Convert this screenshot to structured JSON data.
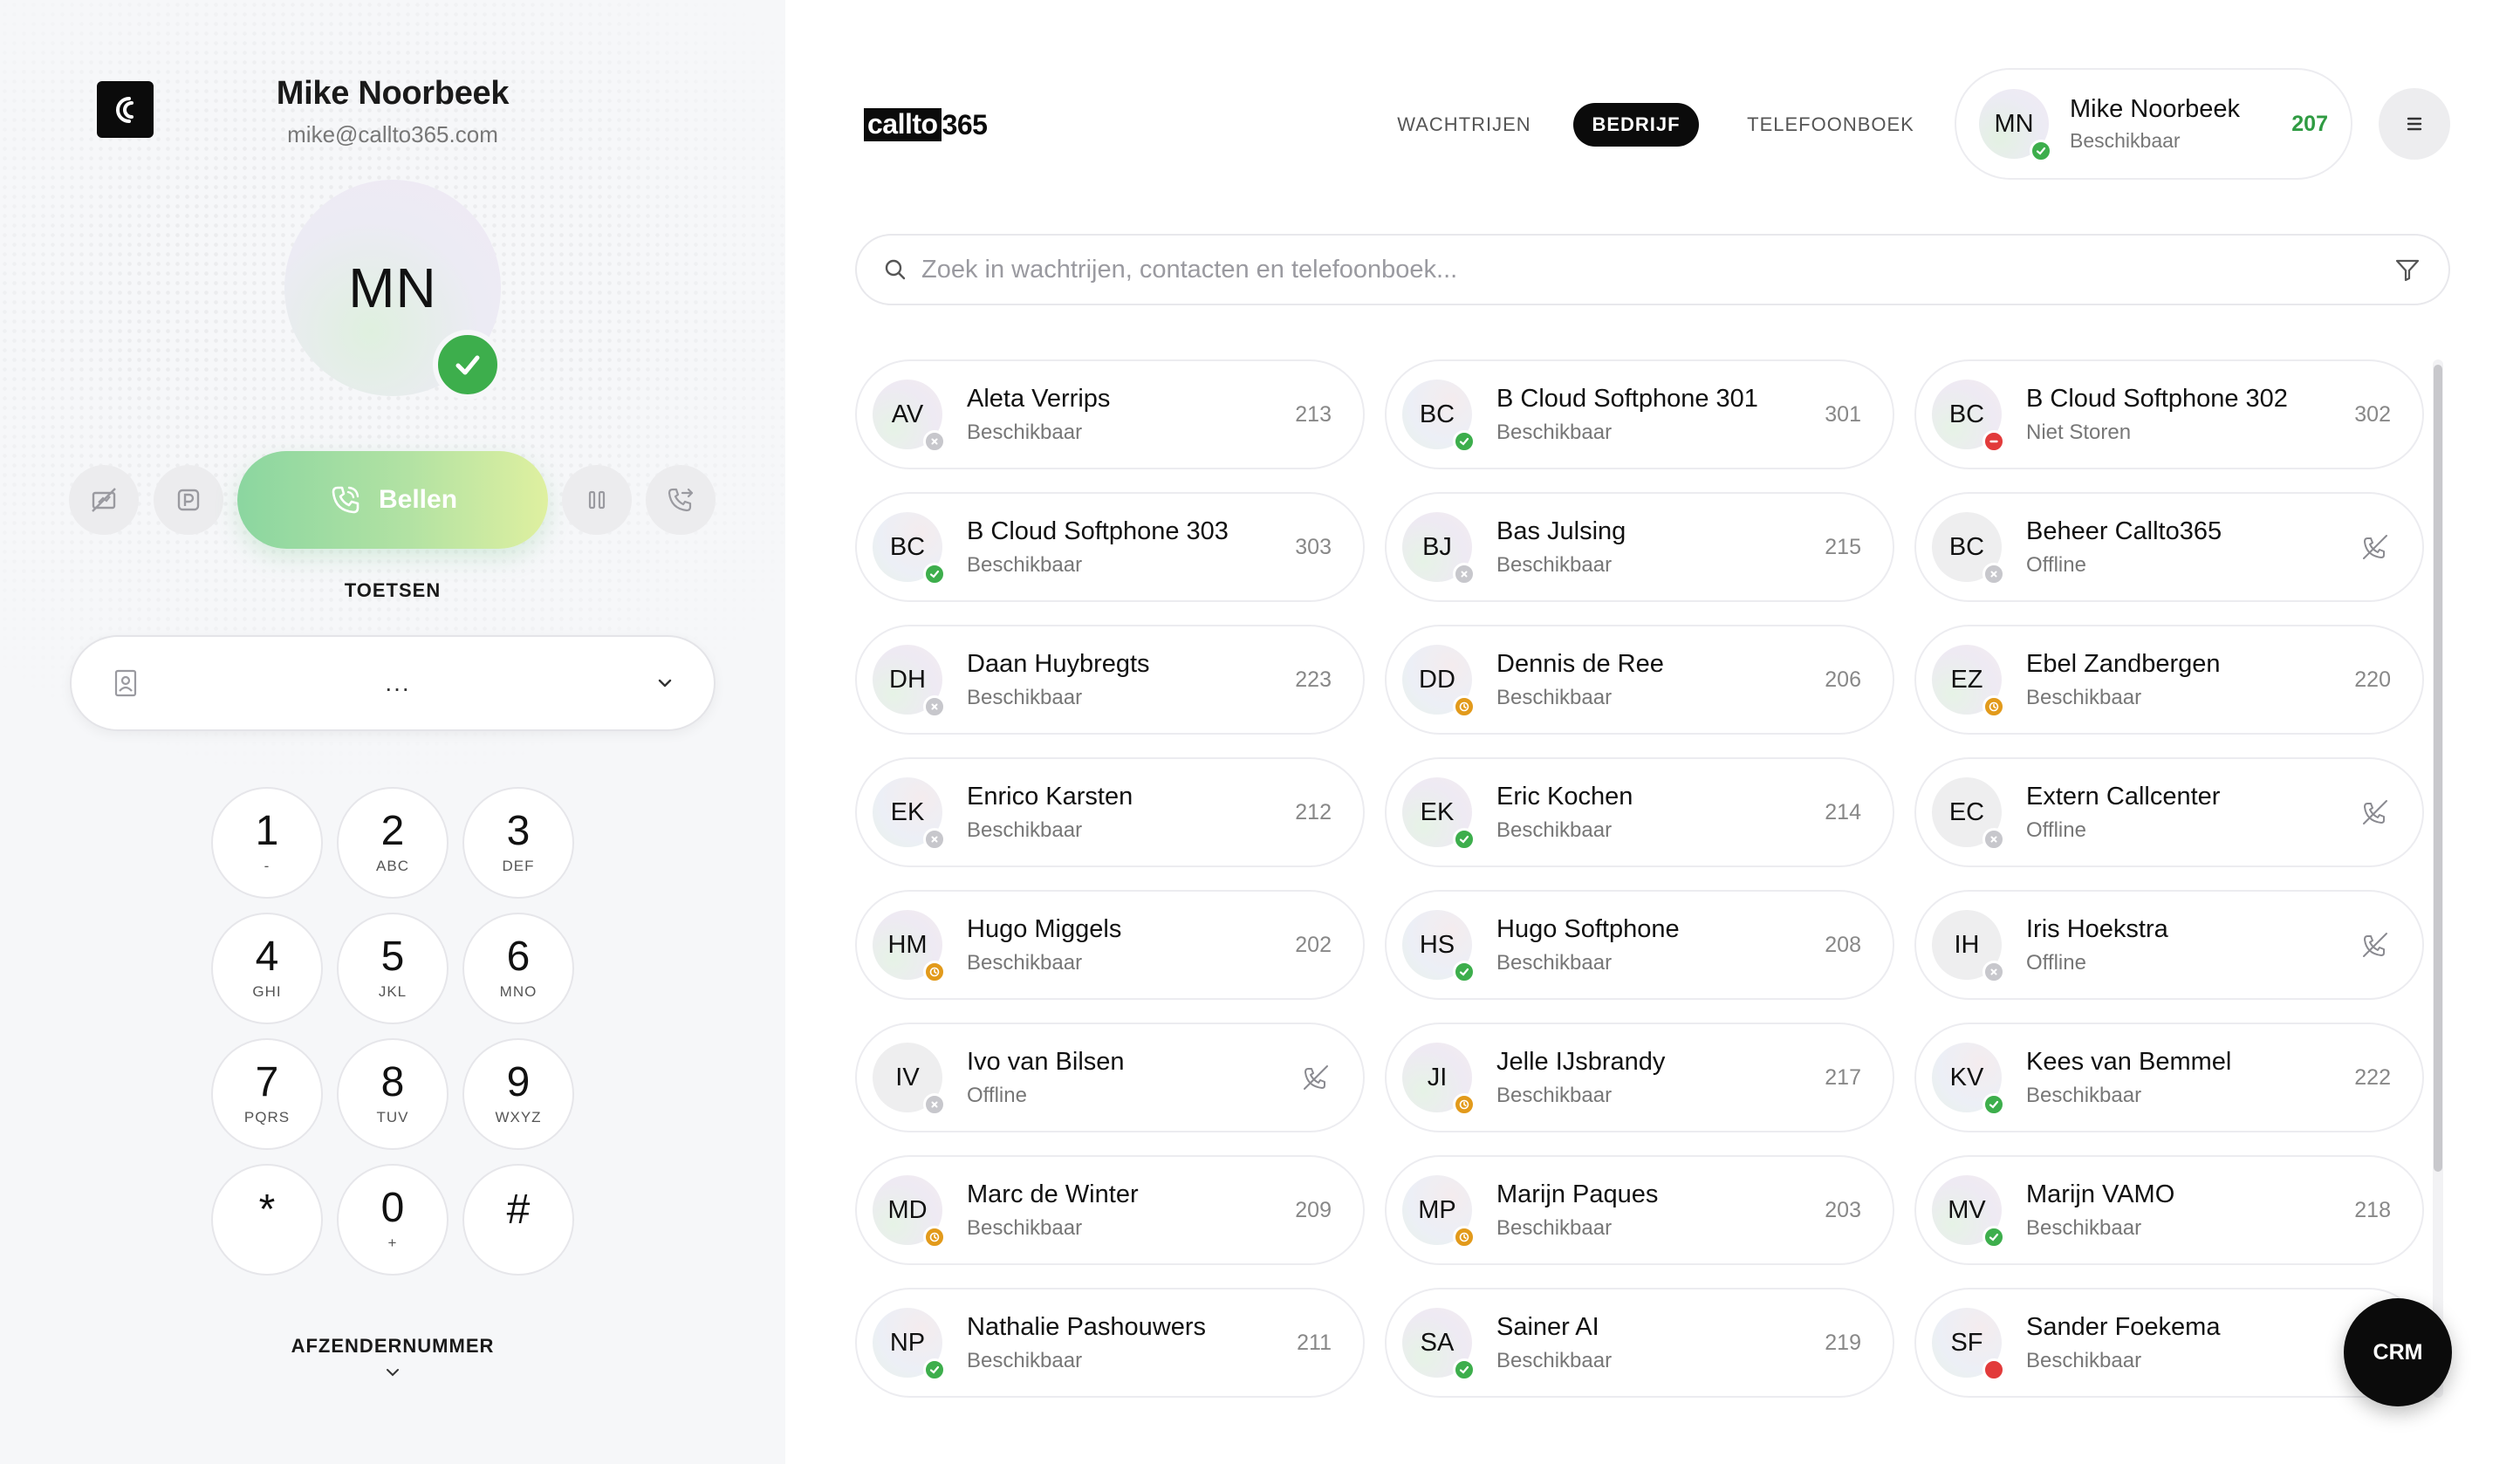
{
  "user": {
    "name": "Mike Noorbeek",
    "email": "mike@callto365.com",
    "initials": "MN",
    "status": "Beschikbaar",
    "extension": "207"
  },
  "dialer": {
    "call_label": "Bellen",
    "keys_label": "TOETSEN",
    "number_value": "...",
    "sender_label": "AFZENDERNUMMER",
    "keys": [
      {
        "digit": "1",
        "letters": "-"
      },
      {
        "digit": "2",
        "letters": "ABC"
      },
      {
        "digit": "3",
        "letters": "DEF"
      },
      {
        "digit": "4",
        "letters": "GHI"
      },
      {
        "digit": "5",
        "letters": "JKL"
      },
      {
        "digit": "6",
        "letters": "MNO"
      },
      {
        "digit": "7",
        "letters": "PQRS"
      },
      {
        "digit": "8",
        "letters": "TUV"
      },
      {
        "digit": "9",
        "letters": "WXYZ"
      },
      {
        "digit": "*",
        "letters": ""
      },
      {
        "digit": "0",
        "letters": "+"
      },
      {
        "digit": "#",
        "letters": ""
      }
    ]
  },
  "brand": {
    "logo_box": "callto",
    "logo_num": "365"
  },
  "tabs": [
    {
      "label": "WACHTRIJEN",
      "active": false
    },
    {
      "label": "BEDRIJF",
      "active": true
    },
    {
      "label": "TELEFOONBOEK",
      "active": false
    }
  ],
  "search": {
    "placeholder": "Zoek in wachtrijen, contacten en telefoonboek..."
  },
  "crm_label": "CRM",
  "contacts": [
    {
      "initials": "AV",
      "name": "Aleta Verrips",
      "status": "Beschikbaar",
      "ext": "213",
      "dot": "offline"
    },
    {
      "initials": "BC",
      "name": "B Cloud Softphone 301",
      "status": "Beschikbaar",
      "ext": "301",
      "dot": "available"
    },
    {
      "initials": "BC",
      "name": "B Cloud Softphone 302",
      "status": "Niet Storen",
      "ext": "302",
      "dot": "dnd"
    },
    {
      "initials": "BC",
      "name": "B Cloud Softphone 303",
      "status": "Beschikbaar",
      "ext": "303",
      "dot": "available"
    },
    {
      "initials": "BJ",
      "name": "Bas Julsing",
      "status": "Beschikbaar",
      "ext": "215",
      "dot": "offline"
    },
    {
      "initials": "BC",
      "name": "Beheer Callto365",
      "status": "Offline",
      "ext": "",
      "dot": "offline"
    },
    {
      "initials": "DH",
      "name": "Daan Huybregts",
      "status": "Beschikbaar",
      "ext": "223",
      "dot": "offline"
    },
    {
      "initials": "DD",
      "name": "Dennis de Ree",
      "status": "Beschikbaar",
      "ext": "206",
      "dot": "away"
    },
    {
      "initials": "EZ",
      "name": "Ebel Zandbergen",
      "status": "Beschikbaar",
      "ext": "220",
      "dot": "away"
    },
    {
      "initials": "EK",
      "name": "Enrico Karsten",
      "status": "Beschikbaar",
      "ext": "212",
      "dot": "offline"
    },
    {
      "initials": "EK",
      "name": "Eric Kochen",
      "status": "Beschikbaar",
      "ext": "214",
      "dot": "available"
    },
    {
      "initials": "EC",
      "name": "Extern Callcenter",
      "status": "Offline",
      "ext": "",
      "dot": "offline"
    },
    {
      "initials": "HM",
      "name": "Hugo Miggels",
      "status": "Beschikbaar",
      "ext": "202",
      "dot": "away"
    },
    {
      "initials": "HS",
      "name": "Hugo Softphone",
      "status": "Beschikbaar",
      "ext": "208",
      "dot": "available"
    },
    {
      "initials": "IH",
      "name": "Iris Hoekstra",
      "status": "Offline",
      "ext": "",
      "dot": "offline"
    },
    {
      "initials": "IV",
      "name": "Ivo van Bilsen",
      "status": "Offline",
      "ext": "",
      "dot": "offline"
    },
    {
      "initials": "JI",
      "name": "Jelle IJsbrandy",
      "status": "Beschikbaar",
      "ext": "217",
      "dot": "away"
    },
    {
      "initials": "KV",
      "name": "Kees van Bemmel",
      "status": "Beschikbaar",
      "ext": "222",
      "dot": "available"
    },
    {
      "initials": "MD",
      "name": "Marc de Winter",
      "status": "Beschikbaar",
      "ext": "209",
      "dot": "away"
    },
    {
      "initials": "MP",
      "name": "Marijn Paques",
      "status": "Beschikbaar",
      "ext": "203",
      "dot": "away"
    },
    {
      "initials": "MV",
      "name": "Marijn VAMO",
      "status": "Beschikbaar",
      "ext": "218",
      "dot": "available"
    },
    {
      "initials": "NP",
      "name": "Nathalie Pashouwers",
      "status": "Beschikbaar",
      "ext": "211",
      "dot": "available"
    },
    {
      "initials": "SA",
      "name": "Sainer AI",
      "status": "Beschikbaar",
      "ext": "219",
      "dot": "available"
    },
    {
      "initials": "SF",
      "name": "Sander Foekema",
      "status": "Beschikbaar",
      "ext": "",
      "dot": "busy"
    }
  ]
}
